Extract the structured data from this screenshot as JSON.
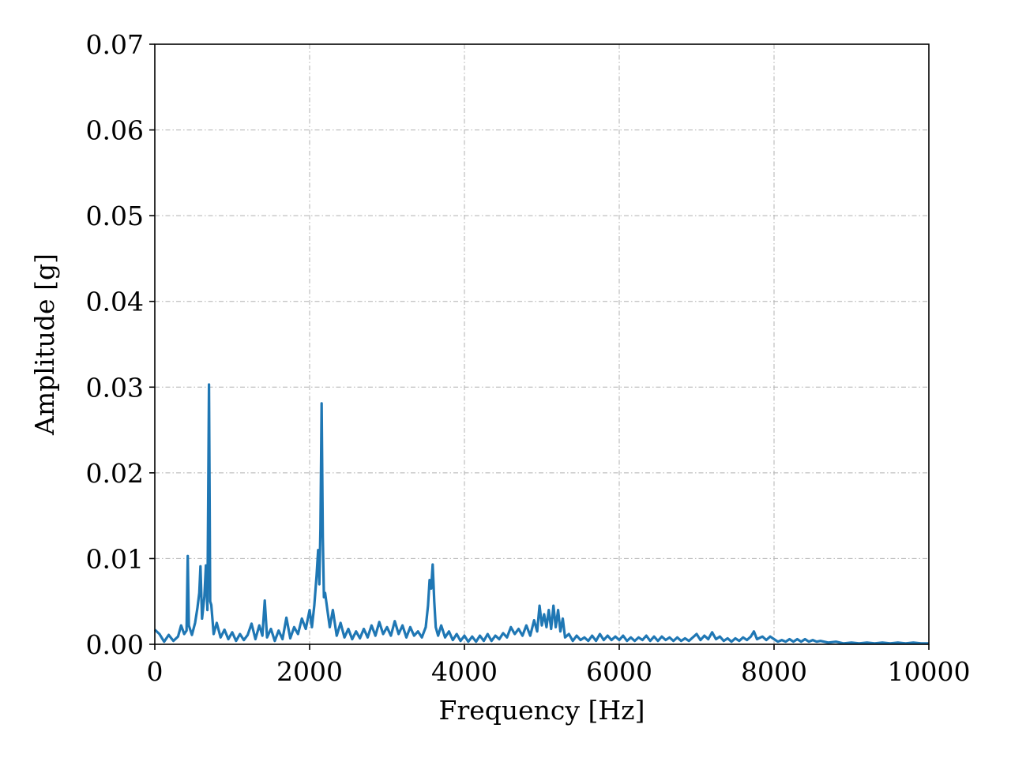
{
  "chart_data": {
    "type": "line",
    "title": "",
    "xlabel": "Frequency [Hz]",
    "ylabel": "Amplitude [g]",
    "xlim": [
      0,
      10000
    ],
    "ylim": [
      0,
      0.07
    ],
    "x_ticks": [
      0,
      2000,
      4000,
      6000,
      8000,
      10000
    ],
    "x_tick_labels": [
      "0",
      "2000",
      "4000",
      "6000",
      "8000",
      "10000"
    ],
    "y_ticks": [
      0,
      0.01,
      0.02,
      0.03,
      0.04,
      0.05,
      0.06,
      0.07
    ],
    "y_tick_labels": [
      "0.00",
      "0.01",
      "0.02",
      "0.03",
      "0.04",
      "0.05",
      "0.06",
      "0.07"
    ],
    "grid": true,
    "legend": "none",
    "line_color": "#1f77b4",
    "series": [
      {
        "points": [
          [
            0,
            0.0017
          ],
          [
            60,
            0.0012
          ],
          [
            120,
            0.0003
          ],
          [
            180,
            0.0011
          ],
          [
            240,
            0.0004
          ],
          [
            300,
            0.0009
          ],
          [
            340,
            0.0022
          ],
          [
            380,
            0.0012
          ],
          [
            410,
            0.0016
          ],
          [
            425,
            0.0103
          ],
          [
            440,
            0.0022
          ],
          [
            480,
            0.0011
          ],
          [
            520,
            0.0025
          ],
          [
            550,
            0.0042
          ],
          [
            575,
            0.006
          ],
          [
            590,
            0.0091
          ],
          [
            610,
            0.003
          ],
          [
            640,
            0.0055
          ],
          [
            660,
            0.0092
          ],
          [
            680,
            0.004
          ],
          [
            700,
            0.0303
          ],
          [
            715,
            0.005
          ],
          [
            730,
            0.0046
          ],
          [
            760,
            0.0012
          ],
          [
            800,
            0.0025
          ],
          [
            850,
            0.0008
          ],
          [
            900,
            0.0017
          ],
          [
            950,
            0.0006
          ],
          [
            1000,
            0.0014
          ],
          [
            1050,
            0.0004
          ],
          [
            1100,
            0.0012
          ],
          [
            1150,
            0.0005
          ],
          [
            1200,
            0.0011
          ],
          [
            1250,
            0.0024
          ],
          [
            1300,
            0.0006
          ],
          [
            1350,
            0.0022
          ],
          [
            1390,
            0.001
          ],
          [
            1420,
            0.0051
          ],
          [
            1450,
            0.0008
          ],
          [
            1500,
            0.0018
          ],
          [
            1550,
            0.0004
          ],
          [
            1600,
            0.0016
          ],
          [
            1650,
            0.0006
          ],
          [
            1700,
            0.0031
          ],
          [
            1750,
            0.0007
          ],
          [
            1800,
            0.002
          ],
          [
            1850,
            0.0012
          ],
          [
            1900,
            0.003
          ],
          [
            1950,
            0.0018
          ],
          [
            2000,
            0.004
          ],
          [
            2030,
            0.002
          ],
          [
            2060,
            0.0045
          ],
          [
            2090,
            0.008
          ],
          [
            2110,
            0.011
          ],
          [
            2125,
            0.007
          ],
          [
            2140,
            0.0135
          ],
          [
            2155,
            0.0281
          ],
          [
            2170,
            0.0125
          ],
          [
            2185,
            0.0055
          ],
          [
            2200,
            0.006
          ],
          [
            2230,
            0.004
          ],
          [
            2260,
            0.002
          ],
          [
            2300,
            0.004
          ],
          [
            2350,
            0.001
          ],
          [
            2400,
            0.0025
          ],
          [
            2450,
            0.0008
          ],
          [
            2500,
            0.0018
          ],
          [
            2550,
            0.0006
          ],
          [
            2600,
            0.0015
          ],
          [
            2650,
            0.0007
          ],
          [
            2700,
            0.0018
          ],
          [
            2750,
            0.0008
          ],
          [
            2800,
            0.0022
          ],
          [
            2850,
            0.001
          ],
          [
            2900,
            0.0026
          ],
          [
            2950,
            0.0012
          ],
          [
            3000,
            0.002
          ],
          [
            3050,
            0.001
          ],
          [
            3100,
            0.0027
          ],
          [
            3150,
            0.0012
          ],
          [
            3200,
            0.0022
          ],
          [
            3250,
            0.0008
          ],
          [
            3300,
            0.002
          ],
          [
            3350,
            0.001
          ],
          [
            3400,
            0.0015
          ],
          [
            3450,
            0.0008
          ],
          [
            3500,
            0.002
          ],
          [
            3530,
            0.0045
          ],
          [
            3550,
            0.0075
          ],
          [
            3570,
            0.0065
          ],
          [
            3590,
            0.0093
          ],
          [
            3610,
            0.005
          ],
          [
            3630,
            0.002
          ],
          [
            3660,
            0.001
          ],
          [
            3700,
            0.0022
          ],
          [
            3750,
            0.0008
          ],
          [
            3800,
            0.0015
          ],
          [
            3850,
            0.0005
          ],
          [
            3900,
            0.0012
          ],
          [
            3950,
            0.0004
          ],
          [
            4000,
            0.001
          ],
          [
            4050,
            0.0003
          ],
          [
            4100,
            0.0009
          ],
          [
            4150,
            0.0003
          ],
          [
            4200,
            0.001
          ],
          [
            4250,
            0.0004
          ],
          [
            4300,
            0.0012
          ],
          [
            4350,
            0.0004
          ],
          [
            4400,
            0.001
          ],
          [
            4450,
            0.0006
          ],
          [
            4500,
            0.0013
          ],
          [
            4550,
            0.0008
          ],
          [
            4600,
            0.002
          ],
          [
            4650,
            0.0012
          ],
          [
            4700,
            0.0018
          ],
          [
            4750,
            0.001
          ],
          [
            4800,
            0.0022
          ],
          [
            4850,
            0.001
          ],
          [
            4900,
            0.0028
          ],
          [
            4940,
            0.0015
          ],
          [
            4970,
            0.0045
          ],
          [
            5000,
            0.0022
          ],
          [
            5030,
            0.0035
          ],
          [
            5060,
            0.002
          ],
          [
            5090,
            0.004
          ],
          [
            5120,
            0.0018
          ],
          [
            5150,
            0.0045
          ],
          [
            5180,
            0.002
          ],
          [
            5210,
            0.004
          ],
          [
            5240,
            0.0015
          ],
          [
            5270,
            0.003
          ],
          [
            5300,
            0.0008
          ],
          [
            5350,
            0.0012
          ],
          [
            5400,
            0.0004
          ],
          [
            5450,
            0.001
          ],
          [
            5500,
            0.0005
          ],
          [
            5550,
            0.0008
          ],
          [
            5600,
            0.0004
          ],
          [
            5650,
            0.001
          ],
          [
            5700,
            0.0004
          ],
          [
            5750,
            0.0012
          ],
          [
            5800,
            0.0005
          ],
          [
            5850,
            0.001
          ],
          [
            5900,
            0.0005
          ],
          [
            5950,
            0.0009
          ],
          [
            6000,
            0.0005
          ],
          [
            6050,
            0.001
          ],
          [
            6100,
            0.0004
          ],
          [
            6150,
            0.0008
          ],
          [
            6200,
            0.0004
          ],
          [
            6250,
            0.0008
          ],
          [
            6300,
            0.0005
          ],
          [
            6350,
            0.001
          ],
          [
            6400,
            0.0004
          ],
          [
            6450,
            0.0009
          ],
          [
            6500,
            0.0004
          ],
          [
            6550,
            0.0009
          ],
          [
            6600,
            0.0005
          ],
          [
            6650,
            0.0008
          ],
          [
            6700,
            0.0004
          ],
          [
            6750,
            0.0008
          ],
          [
            6800,
            0.0004
          ],
          [
            6850,
            0.0007
          ],
          [
            6900,
            0.0004
          ],
          [
            6950,
            0.0008
          ],
          [
            7000,
            0.0012
          ],
          [
            7050,
            0.0005
          ],
          [
            7100,
            0.001
          ],
          [
            7150,
            0.0006
          ],
          [
            7200,
            0.0014
          ],
          [
            7250,
            0.0006
          ],
          [
            7300,
            0.0009
          ],
          [
            7350,
            0.0004
          ],
          [
            7400,
            0.0007
          ],
          [
            7450,
            0.0003
          ],
          [
            7500,
            0.0007
          ],
          [
            7550,
            0.0004
          ],
          [
            7600,
            0.0008
          ],
          [
            7650,
            0.0005
          ],
          [
            7700,
            0.0009
          ],
          [
            7740,
            0.0015
          ],
          [
            7780,
            0.0006
          ],
          [
            7850,
            0.0009
          ],
          [
            7900,
            0.0005
          ],
          [
            7950,
            0.0009
          ],
          [
            8000,
            0.0006
          ],
          [
            8050,
            0.0003
          ],
          [
            8100,
            0.0005
          ],
          [
            8150,
            0.0003
          ],
          [
            8200,
            0.0006
          ],
          [
            8250,
            0.0003
          ],
          [
            8300,
            0.0006
          ],
          [
            8350,
            0.0003
          ],
          [
            8400,
            0.0006
          ],
          [
            8450,
            0.0003
          ],
          [
            8500,
            0.0005
          ],
          [
            8550,
            0.0003
          ],
          [
            8600,
            0.0004
          ],
          [
            8700,
            0.0002
          ],
          [
            8800,
            0.0003
          ],
          [
            8900,
            0.0001
          ],
          [
            9000,
            0.0002
          ],
          [
            9100,
            0.0001
          ],
          [
            9200,
            0.0002
          ],
          [
            9300,
            0.0001
          ],
          [
            9400,
            0.0002
          ],
          [
            9500,
            0.0001
          ],
          [
            9600,
            0.0002
          ],
          [
            9700,
            0.0001
          ],
          [
            9800,
            0.0002
          ],
          [
            9900,
            0.0001
          ],
          [
            10000,
            0.0001
          ]
        ]
      }
    ]
  }
}
